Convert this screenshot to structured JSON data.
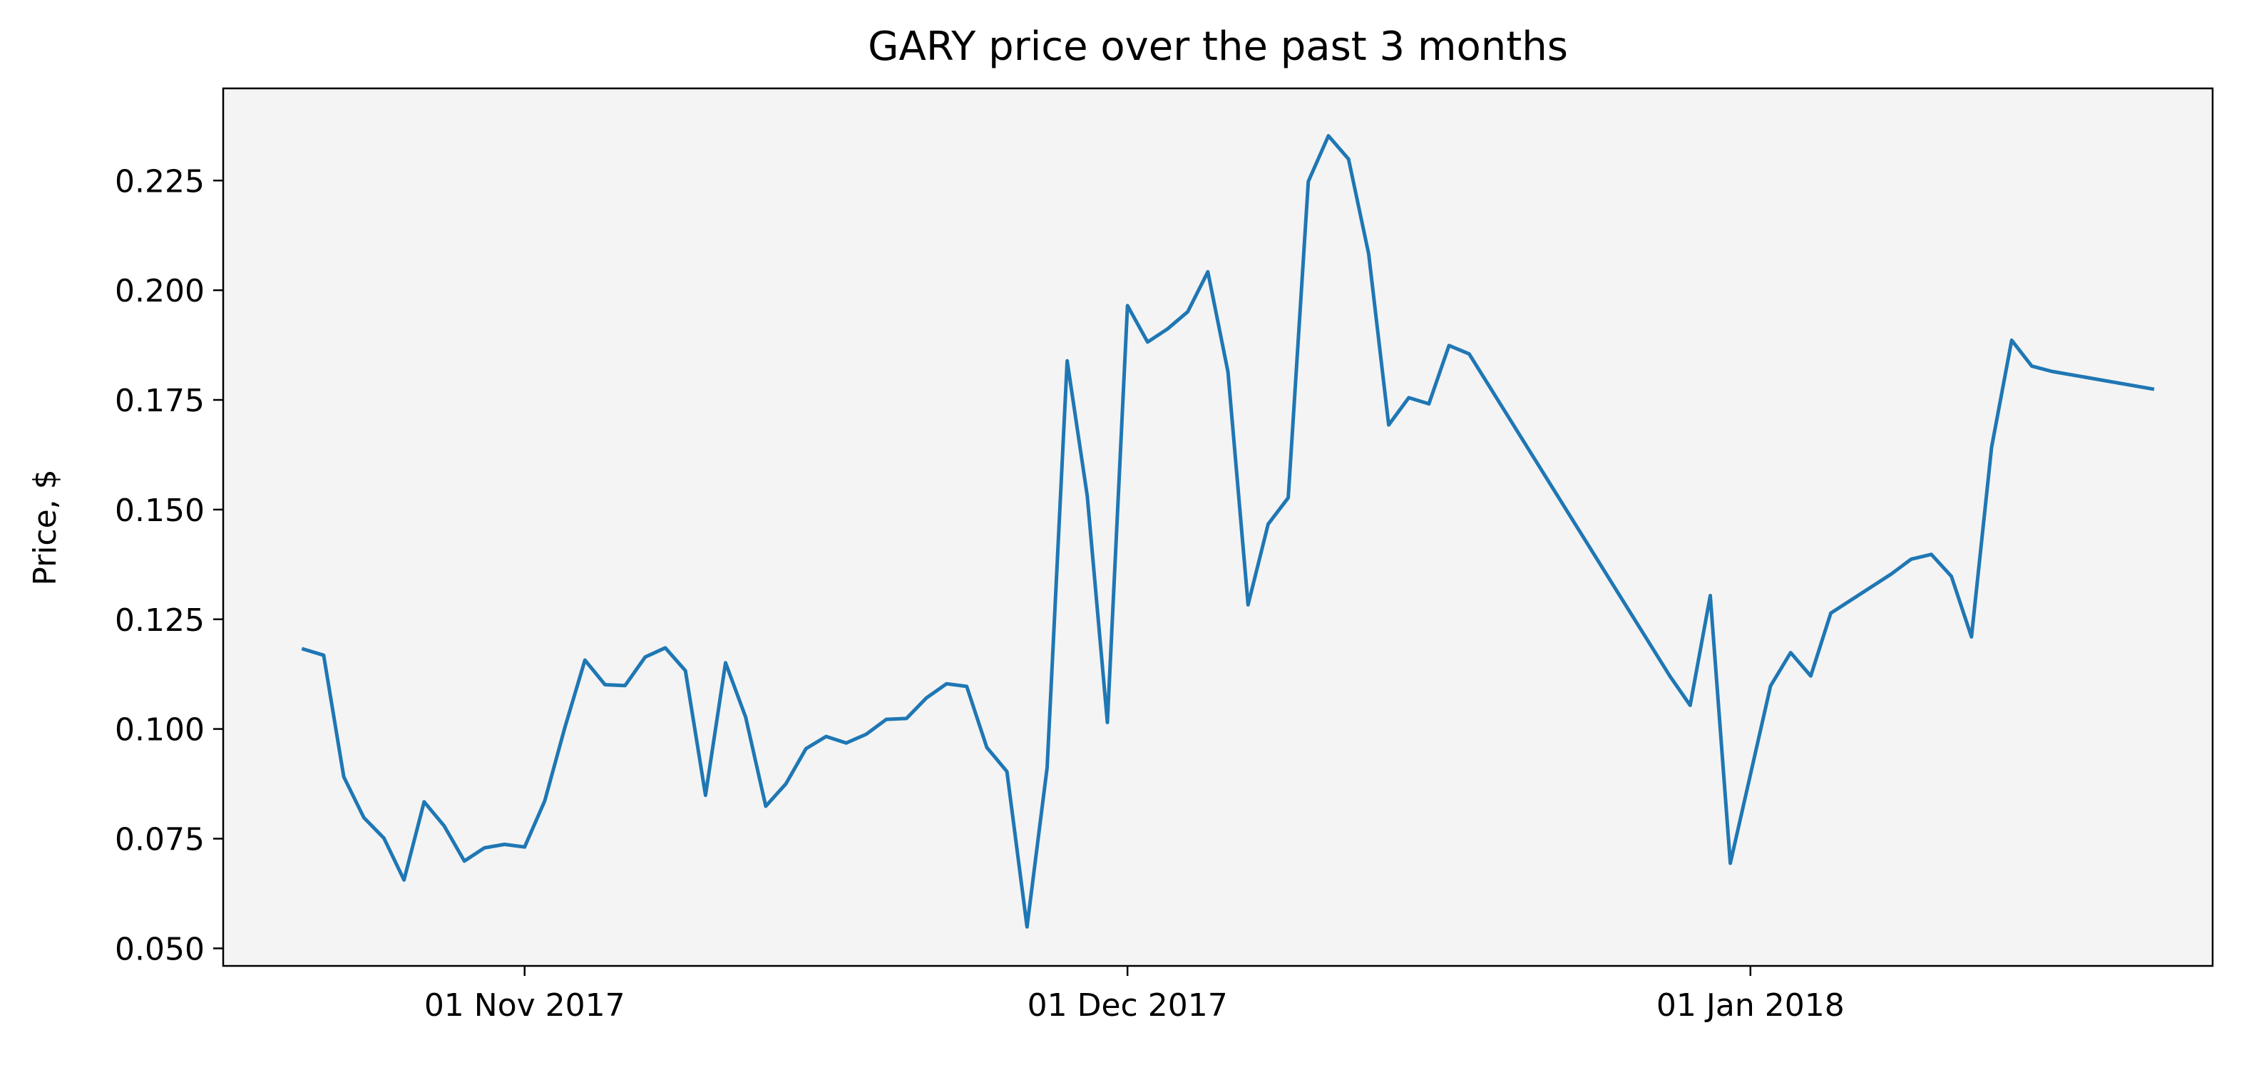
{
  "chart_data": {
    "type": "line",
    "title": "GARY price over the past 3 months",
    "xlabel": "",
    "ylabel": "Price, $",
    "x_tick_labels": [
      "01 Nov 2017",
      "01 Dec 2017",
      "01 Jan 2018"
    ],
    "x_tick_dates": [
      "2017-11-01",
      "2017-12-01",
      "2018-01-01"
    ],
    "y_ticks": [
      0.05,
      0.075,
      0.1,
      0.125,
      0.15,
      0.175,
      0.2,
      0.225
    ],
    "y_tick_labels": [
      "0.050",
      "0.075",
      "0.100",
      "0.125",
      "0.150",
      "0.175",
      "0.200",
      "0.225"
    ],
    "xlim": [
      "2017-10-17",
      "2018-01-24"
    ],
    "ylim": [
      0.046,
      0.246
    ],
    "grid": false,
    "background_color": "#f4f4f4",
    "line_color": "#1f77b4",
    "series": [
      {
        "x": [
          "2017-10-21",
          "2017-10-22",
          "2017-10-23",
          "2017-10-24",
          "2017-10-25",
          "2017-10-26",
          "2017-10-27",
          "2017-10-28",
          "2017-10-29",
          "2017-10-30",
          "2017-10-31",
          "2017-11-01",
          "2017-11-02",
          "2017-11-03",
          "2017-11-04",
          "2017-11-05",
          "2017-11-06",
          "2017-11-07",
          "2017-11-08",
          "2017-11-09",
          "2017-11-10",
          "2017-11-11",
          "2017-11-12",
          "2017-11-13",
          "2017-11-14",
          "2017-11-15",
          "2017-11-16",
          "2017-11-17",
          "2017-11-18",
          "2017-11-19",
          "2017-11-20",
          "2017-11-21",
          "2017-11-22",
          "2017-11-23",
          "2017-11-24",
          "2017-11-25",
          "2017-11-26",
          "2017-11-27",
          "2017-11-28",
          "2017-11-29",
          "2017-11-30",
          "2017-12-01",
          "2017-12-02",
          "2017-12-03",
          "2017-12-04",
          "2017-12-05",
          "2017-12-06",
          "2017-12-07",
          "2017-12-08",
          "2017-12-09",
          "2017-12-10",
          "2017-12-11",
          "2017-12-12",
          "2017-12-13",
          "2017-12-14",
          "2017-12-15",
          "2017-12-16",
          "2017-12-17",
          "2017-12-18",
          "2017-12-28",
          "2017-12-29",
          "2017-12-30",
          "2017-12-31",
          "2018-01-02",
          "2018-01-03",
          "2018-01-04",
          "2018-01-05",
          "2018-01-08",
          "2018-01-09",
          "2018-01-10",
          "2018-01-11",
          "2018-01-12",
          "2018-01-13",
          "2018-01-14",
          "2018-01-15",
          "2018-01-16",
          "2018-01-21"
        ],
        "values": [
          0.1182,
          0.1168,
          0.0891,
          0.0798,
          0.0751,
          0.0656,
          0.0834,
          0.0779,
          0.0699,
          0.0729,
          0.0737,
          0.0731,
          0.0836,
          0.1003,
          0.1157,
          0.1101,
          0.1099,
          0.1164,
          0.1185,
          0.1133,
          0.0849,
          0.1151,
          0.1027,
          0.0824,
          0.0875,
          0.0955,
          0.0983,
          0.0968,
          0.0988,
          0.1022,
          0.1024,
          0.1071,
          0.1103,
          0.1097,
          0.0958,
          0.0903,
          0.0549,
          0.0912,
          0.1839,
          0.1531,
          0.1015,
          0.1965,
          0.1882,
          0.1912,
          0.1951,
          0.2042,
          0.1814,
          0.1283,
          0.1467,
          0.1527,
          0.2248,
          0.2352,
          0.2299,
          0.2083,
          0.1693,
          0.1755,
          0.1741,
          0.1874,
          0.1855,
          0.112,
          0.1054,
          0.1304,
          0.0694,
          0.1098,
          0.1174,
          0.1121,
          0.1264,
          0.1353,
          0.1387,
          0.1398,
          0.1348,
          0.121,
          0.1642,
          0.1886,
          0.1827,
          0.1815,
          0.1775
        ]
      }
    ]
  }
}
